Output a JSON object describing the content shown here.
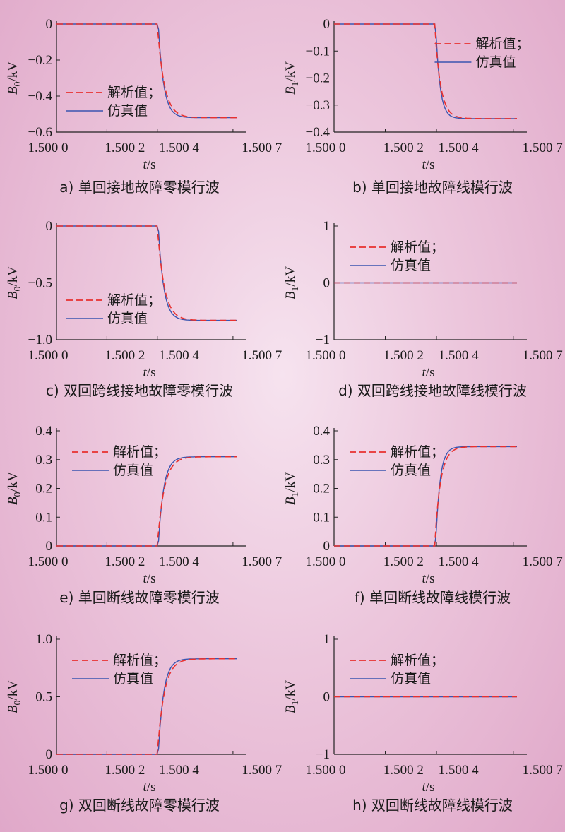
{
  "chart_data": [
    {
      "type": "line",
      "caption": "a) 单回接地故障零模行波",
      "xlabel_italic": "t",
      "xlabel_rest": "/s",
      "ylabel_base": "B",
      "ylabel_sub": "0",
      "ylabel_rest": "/kV",
      "xticks": [
        "1.500 0",
        "1.500 2",
        "1.500 4",
        "1.500 7"
      ],
      "yticks": [
        "0",
        "−0.2",
        "−0.4",
        "−0.6"
      ],
      "ylim": [
        -0.6,
        0
      ],
      "ytick_values": [
        0,
        -0.2,
        -0.4,
        -0.6
      ],
      "transition": {
        "t0": 0.56,
        "t1": 0.62,
        "from": 0,
        "to": -0.52,
        "direction": "fall"
      },
      "legend_pos": "lower-left",
      "series": [
        {
          "name": "解析值；",
          "style": "dashed",
          "color": "#e8312f"
        },
        {
          "name": "仿真值",
          "style": "solid",
          "color": "#3a55b0"
        }
      ]
    },
    {
      "type": "line",
      "caption": "b) 单回接地故障线模行波",
      "xlabel_italic": "t",
      "xlabel_rest": "/s",
      "ylabel_base": "B",
      "ylabel_sub": "1",
      "ylabel_rest": "/kV",
      "xticks": [
        "1.500 0",
        "1.500 2",
        "1.500 4",
        "1.500 7"
      ],
      "yticks": [
        "0",
        "−0.1",
        "−0.2",
        "−0.3",
        "−0.4"
      ],
      "ylim": [
        -0.4,
        0
      ],
      "ytick_values": [
        0,
        -0.1,
        -0.2,
        -0.3,
        -0.4
      ],
      "transition": {
        "t0": 0.55,
        "t1": 0.6,
        "from": 0,
        "to": -0.35,
        "direction": "fall"
      },
      "legend_pos": "upper-right",
      "series": [
        {
          "name": "解析值；",
          "style": "dashed",
          "color": "#e8312f"
        },
        {
          "name": "仿真值",
          "style": "solid",
          "color": "#3a55b0"
        }
      ]
    },
    {
      "type": "line",
      "caption": "c) 双回跨线接地故障零模行波",
      "xlabel_italic": "t",
      "xlabel_rest": "/s",
      "ylabel_base": "B",
      "ylabel_sub": "0",
      "ylabel_rest": "/kV",
      "xticks": [
        "1.500 0",
        "1.500 2",
        "1.500 4",
        "1.500 7"
      ],
      "yticks": [
        "0",
        "−0.5",
        "−1.0"
      ],
      "ylim": [
        -1.0,
        0
      ],
      "ytick_values": [
        0,
        -0.5,
        -1.0
      ],
      "transition": {
        "t0": 0.56,
        "t1": 0.62,
        "from": 0,
        "to": -0.83,
        "direction": "fall"
      },
      "legend_pos": "lower-left",
      "series": [
        {
          "name": "解析值；",
          "style": "dashed",
          "color": "#e8312f"
        },
        {
          "name": "仿真值",
          "style": "solid",
          "color": "#3a55b0"
        }
      ]
    },
    {
      "type": "line",
      "caption": "d) 双回跨线接地故障线模行波",
      "xlabel_italic": "t",
      "xlabel_rest": "/s",
      "ylabel_base": "B",
      "ylabel_sub": "1",
      "ylabel_rest": "/kV",
      "xticks": [
        "1.500 0",
        "1.500 2",
        "1.500 4",
        "1.500 7"
      ],
      "yticks": [
        "1",
        "0",
        "−1"
      ],
      "ylim": [
        -1,
        1
      ],
      "ytick_values": [
        1,
        0,
        -1
      ],
      "transition": {
        "t0": 0.56,
        "t1": 0.62,
        "from": 0,
        "to": 0,
        "direction": "flat"
      },
      "legend_pos": "upper-left",
      "series": [
        {
          "name": "解析值；",
          "style": "dashed",
          "color": "#e8312f"
        },
        {
          "name": "仿真值",
          "style": "solid",
          "color": "#3a55b0"
        }
      ]
    },
    {
      "type": "line",
      "caption": "e) 单回断线故障零模行波",
      "xlabel_italic": "t",
      "xlabel_rest": "/s",
      "ylabel_base": "B",
      "ylabel_sub": "0",
      "ylabel_rest": "/kV",
      "xticks": [
        "1.500 0",
        "1.500 2",
        "1.500 4",
        "1.500 7"
      ],
      "yticks": [
        "0.4",
        "0.3",
        "0.2",
        "0.1",
        "0"
      ],
      "ylim": [
        0,
        0.4
      ],
      "ytick_values": [
        0.4,
        0.3,
        0.2,
        0.1,
        0
      ],
      "transition": {
        "t0": 0.56,
        "t1": 0.62,
        "from": 0,
        "to": 0.31,
        "direction": "rise"
      },
      "legend_pos": "upper-left",
      "series": [
        {
          "name": "解析值；",
          "style": "dashed",
          "color": "#e8312f"
        },
        {
          "name": "仿真值",
          "style": "solid",
          "color": "#3a55b0"
        }
      ]
    },
    {
      "type": "line",
      "caption": "f) 单回断线故障线模行波",
      "xlabel_italic": "t",
      "xlabel_rest": "/s",
      "ylabel_base": "B",
      "ylabel_sub": "1",
      "ylabel_rest": "/kV",
      "xticks": [
        "1.500 0",
        "1.500 2",
        "1.500 4",
        "1.500 7"
      ],
      "yticks": [
        "0.4",
        "0.3",
        "0.2",
        "0.1",
        "0"
      ],
      "ylim": [
        0,
        0.4
      ],
      "ytick_values": [
        0.4,
        0.3,
        0.2,
        0.1,
        0
      ],
      "transition": {
        "t0": 0.55,
        "t1": 0.6,
        "from": 0,
        "to": 0.345,
        "direction": "rise"
      },
      "legend_pos": "upper-left",
      "series": [
        {
          "name": "解析值；",
          "style": "dashed",
          "color": "#e8312f"
        },
        {
          "name": "仿真值",
          "style": "solid",
          "color": "#3a55b0"
        }
      ]
    },
    {
      "type": "line",
      "caption": "g) 双回断线故障零模行波",
      "xlabel_italic": "t",
      "xlabel_rest": "/s",
      "ylabel_base": "B",
      "ylabel_sub": "0",
      "ylabel_rest": "/kV",
      "xticks": [
        "1.500 0",
        "1.500 2",
        "1.500 4",
        "1.500 7"
      ],
      "yticks": [
        "1.0",
        "0.5",
        "0"
      ],
      "ylim": [
        0,
        1.0
      ],
      "ytick_values": [
        1.0,
        0.5,
        0
      ],
      "transition": {
        "t0": 0.56,
        "t1": 0.62,
        "from": 0,
        "to": 0.83,
        "direction": "rise"
      },
      "legend_pos": "upper-left",
      "series": [
        {
          "name": "解析值；",
          "style": "dashed",
          "color": "#e8312f"
        },
        {
          "name": "仿真值",
          "style": "solid",
          "color": "#3a55b0"
        }
      ]
    },
    {
      "type": "line",
      "caption": "h) 双回断线故障线模行波",
      "xlabel_italic": "t",
      "xlabel_rest": "/s",
      "ylabel_base": "B",
      "ylabel_sub": "1",
      "ylabel_rest": "/kV",
      "xticks": [
        "1.500 0",
        "1.500 2",
        "1.500 4",
        "1.500 7"
      ],
      "yticks": [
        "1",
        "0",
        "−1"
      ],
      "ylim": [
        -1,
        1
      ],
      "ytick_values": [
        1,
        0,
        -1
      ],
      "transition": {
        "t0": 0.56,
        "t1": 0.62,
        "from": 0,
        "to": 0,
        "direction": "flat"
      },
      "legend_pos": "upper-left",
      "series": [
        {
          "name": "解析值；",
          "style": "dashed",
          "color": "#e8312f"
        },
        {
          "name": "仿真值",
          "style": "solid",
          "color": "#3a55b0"
        }
      ]
    }
  ]
}
